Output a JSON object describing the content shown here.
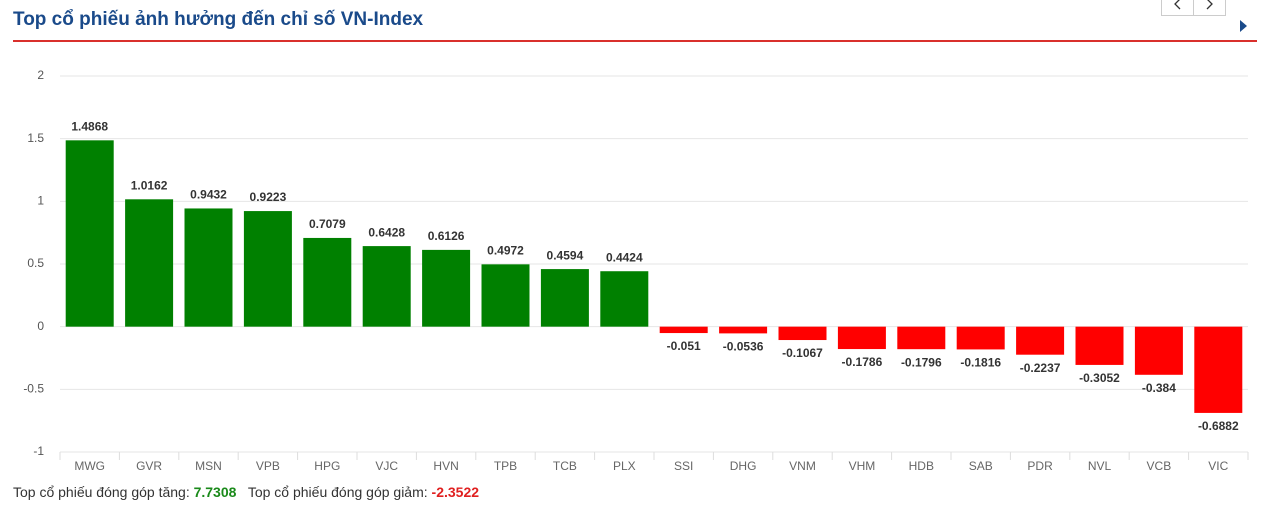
{
  "chart_data": {
    "type": "bar",
    "title": "Top cổ phiếu ảnh hưởng đến chỉ số VN-Index",
    "categories": [
      "MWG",
      "GVR",
      "MSN",
      "VPB",
      "HPG",
      "VJC",
      "HVN",
      "TPB",
      "TCB",
      "PLX",
      "SSI",
      "DHG",
      "VNM",
      "VHM",
      "HDB",
      "SAB",
      "PDR",
      "NVL",
      "VCB",
      "VIC"
    ],
    "values": [
      1.4868,
      1.0162,
      0.9432,
      0.9223,
      0.7079,
      0.6428,
      0.6126,
      0.4972,
      0.4594,
      0.4424,
      -0.051,
      -0.0536,
      -0.1067,
      -0.1786,
      -0.1796,
      -0.1816,
      -0.2237,
      -0.3052,
      -0.384,
      -0.6882
    ],
    "positive_color": "#008000",
    "negative_color": "#ff0000",
    "ylim": [
      -1,
      2
    ],
    "yticks": [
      -1,
      -0.5,
      0,
      0.5,
      1,
      1.5,
      2
    ],
    "grid": true,
    "footer": {
      "gain_label": "Top cổ phiếu đóng góp tăng:",
      "gain_value": 7.7308,
      "loss_label": "Top cổ phiếu đóng góp giảm:",
      "loss_value": -2.3522
    }
  }
}
